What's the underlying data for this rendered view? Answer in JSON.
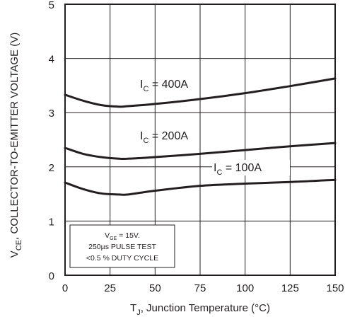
{
  "chart_data": {
    "type": "line",
    "xlabel": {
      "main": "T",
      "sub": "J",
      "rest": ", Junction Temperature (°C)"
    },
    "ylabel": {
      "main": "V",
      "sub": "CE",
      "rest": ", COLLECTOR-TO-EMITTER VOLTAGE (V)"
    },
    "xlim": [
      0,
      150
    ],
    "ylim": [
      0,
      5
    ],
    "xticks": [
      0,
      25,
      50,
      75,
      100,
      125,
      150
    ],
    "yticks": [
      0,
      1,
      2,
      3,
      4,
      5
    ],
    "grid": true,
    "series": [
      {
        "name": "I_C = 400A",
        "label": {
          "main": "I",
          "sub": "C",
          "rest": " = 400A"
        },
        "x": [
          0,
          10,
          20,
          30,
          35,
          50,
          75,
          100,
          125,
          150
        ],
        "y": [
          3.33,
          3.22,
          3.14,
          3.11,
          3.12,
          3.16,
          3.25,
          3.36,
          3.49,
          3.63
        ]
      },
      {
        "name": "I_C = 200A",
        "label": {
          "main": "I",
          "sub": "C",
          "rest": " = 200A"
        },
        "x": [
          0,
          10,
          20,
          30,
          35,
          50,
          75,
          100,
          125,
          150
        ],
        "y": [
          2.35,
          2.24,
          2.18,
          2.15,
          2.15,
          2.18,
          2.24,
          2.31,
          2.38,
          2.44
        ]
      },
      {
        "name": "I_C = 100A",
        "label": {
          "main": "I",
          "sub": "C",
          "rest": " = 100A"
        },
        "x": [
          0,
          10,
          20,
          30,
          35,
          50,
          75,
          100,
          125,
          150
        ],
        "y": [
          1.71,
          1.59,
          1.51,
          1.49,
          1.49,
          1.56,
          1.65,
          1.69,
          1.72,
          1.76
        ]
      }
    ],
    "test_conditions": {
      "line1": {
        "main": "V",
        "sub": "GE",
        "rest": " = 15V."
      },
      "line2": "250µs PULSE TEST",
      "line3": "<0.5 % DUTY CYCLE"
    },
    "colors": {
      "line": "#231f20",
      "grid": "#231f20",
      "background": "#ffffff"
    }
  }
}
